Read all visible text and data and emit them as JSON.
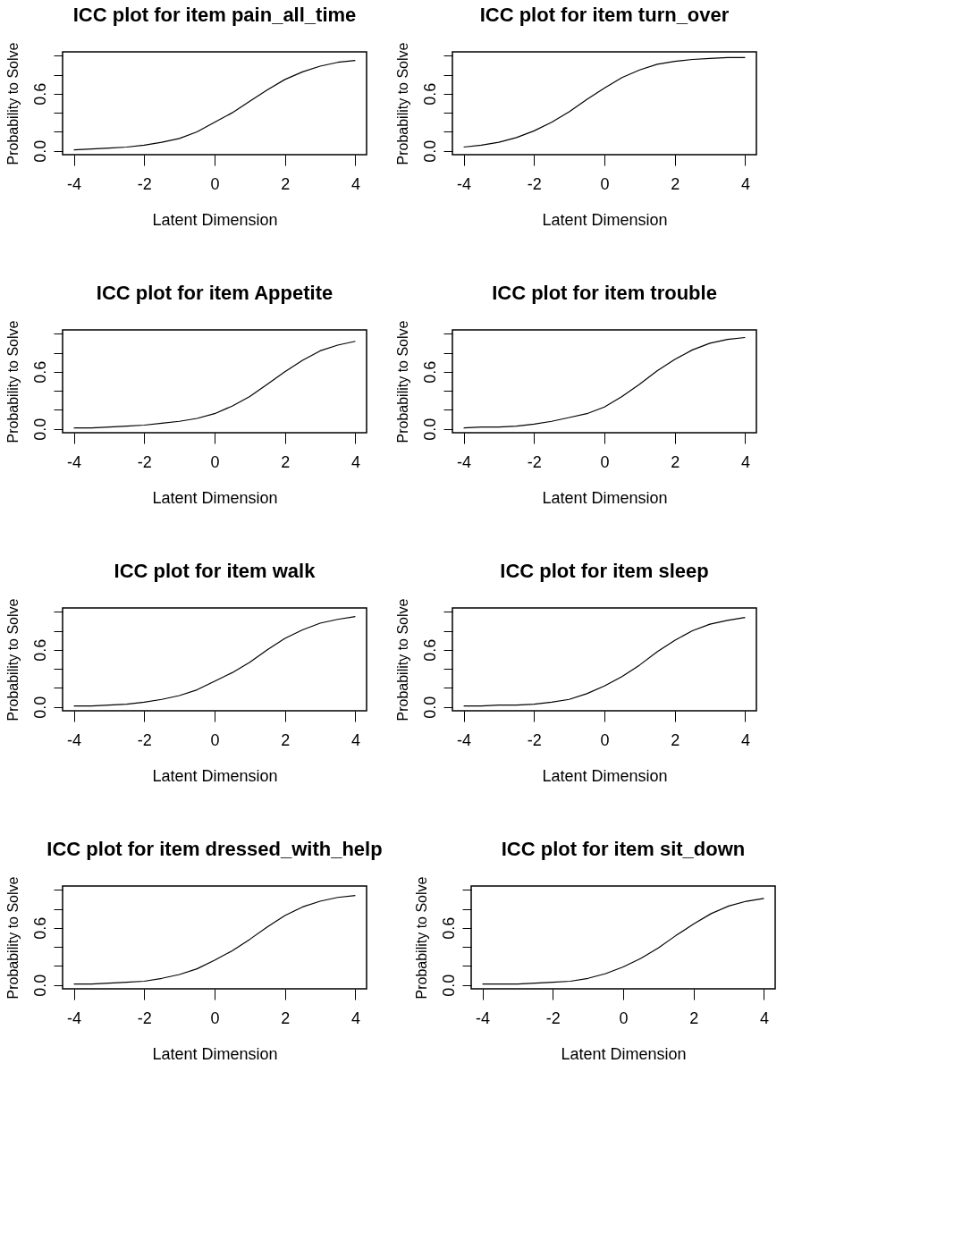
{
  "chart_data": [
    {
      "type": "line",
      "title": "ICC plot for item  pain_all_time",
      "xlabel": "Latent Dimension",
      "ylabel": "Probability to Solve",
      "x": [
        -4,
        -3.5,
        -3,
        -2.5,
        -2,
        -1.5,
        -1,
        -0.5,
        0,
        0.5,
        1,
        1.5,
        2,
        2.5,
        3,
        3.5,
        4
      ],
      "xlim": [
        -4.32,
        4.32
      ],
      "ylim": [
        -0.04,
        1.04
      ],
      "xticks": [
        -4,
        -2,
        0,
        2,
        4
      ],
      "yticks": [
        {
          "value": 0,
          "label": "0.0"
        },
        {
          "value": 0.2,
          "label": null
        },
        {
          "value": 0.4,
          "label": null
        },
        {
          "value": 0.6,
          "label": "0.6"
        },
        {
          "value": 0.8,
          "label": null
        },
        {
          "value": 1.0,
          "label": null
        }
      ],
      "grid": false,
      "legend": false,
      "series": [
        {
          "color": "#000000",
          "values": [
            0.01,
            0.02,
            0.03,
            0.04,
            0.06,
            0.09,
            0.13,
            0.2,
            0.3,
            0.4,
            0.52,
            0.64,
            0.75,
            0.83,
            0.89,
            0.93,
            0.95
          ]
        }
      ]
    },
    {
      "type": "line",
      "title": "ICC plot for item  turn_over",
      "xlabel": "Latent Dimension",
      "ylabel": "Probability to Solve",
      "x": [
        -4,
        -3.5,
        -3,
        -2.5,
        -2,
        -1.5,
        -1,
        -0.5,
        0,
        0.5,
        1,
        1.5,
        2,
        2.5,
        3,
        3.5,
        4
      ],
      "xlim": [
        -4.32,
        4.32
      ],
      "ylim": [
        -0.04,
        1.04
      ],
      "xticks": [
        -4,
        -2,
        0,
        2,
        4
      ],
      "yticks": [
        {
          "value": 0,
          "label": "0.0"
        },
        {
          "value": 0.2,
          "label": null
        },
        {
          "value": 0.4,
          "label": null
        },
        {
          "value": 0.6,
          "label": "0.6"
        },
        {
          "value": 0.8,
          "label": null
        },
        {
          "value": 1.0,
          "label": null
        }
      ],
      "grid": false,
      "legend": false,
      "series": [
        {
          "color": "#000000",
          "values": [
            0.04,
            0.06,
            0.09,
            0.14,
            0.21,
            0.3,
            0.41,
            0.54,
            0.66,
            0.77,
            0.85,
            0.91,
            0.94,
            0.96,
            0.97,
            0.98,
            0.98
          ]
        }
      ]
    },
    {
      "type": "line",
      "title": "ICC plot for item  Appetite",
      "xlabel": "Latent Dimension",
      "ylabel": "Probability to Solve",
      "x": [
        -4,
        -3.5,
        -3,
        -2.5,
        -2,
        -1.5,
        -1,
        -0.5,
        0,
        0.5,
        1,
        1.5,
        2,
        2.5,
        3,
        3.5,
        4
      ],
      "xlim": [
        -4.32,
        4.32
      ],
      "ylim": [
        -0.04,
        1.04
      ],
      "xticks": [
        -4,
        -2,
        0,
        2,
        4
      ],
      "yticks": [
        {
          "value": 0,
          "label": "0.0"
        },
        {
          "value": 0.2,
          "label": null
        },
        {
          "value": 0.4,
          "label": null
        },
        {
          "value": 0.6,
          "label": "0.6"
        },
        {
          "value": 0.8,
          "label": null
        },
        {
          "value": 1.0,
          "label": null
        }
      ],
      "grid": false,
      "legend": false,
      "series": [
        {
          "color": "#000000",
          "values": [
            0.01,
            0.01,
            0.02,
            0.03,
            0.04,
            0.06,
            0.08,
            0.11,
            0.16,
            0.24,
            0.34,
            0.47,
            0.6,
            0.72,
            0.82,
            0.88,
            0.92
          ]
        }
      ]
    },
    {
      "type": "line",
      "title": "ICC plot for item  trouble",
      "xlabel": "Latent Dimension",
      "ylabel": "Probability to Solve",
      "x": [
        -4,
        -3.5,
        -3,
        -2.5,
        -2,
        -1.5,
        -1,
        -0.5,
        0,
        0.5,
        1,
        1.5,
        2,
        2.5,
        3,
        3.5,
        4
      ],
      "xlim": [
        -4.32,
        4.32
      ],
      "ylim": [
        -0.04,
        1.04
      ],
      "xticks": [
        -4,
        -2,
        0,
        2,
        4
      ],
      "yticks": [
        {
          "value": 0,
          "label": "0.0"
        },
        {
          "value": 0.2,
          "label": null
        },
        {
          "value": 0.4,
          "label": null
        },
        {
          "value": 0.6,
          "label": "0.6"
        },
        {
          "value": 0.8,
          "label": null
        },
        {
          "value": 1.0,
          "label": null
        }
      ],
      "grid": false,
      "legend": false,
      "series": [
        {
          "color": "#000000",
          "values": [
            0.01,
            0.02,
            0.02,
            0.03,
            0.05,
            0.08,
            0.12,
            0.16,
            0.23,
            0.34,
            0.47,
            0.61,
            0.73,
            0.83,
            0.9,
            0.94,
            0.96
          ]
        }
      ]
    },
    {
      "type": "line",
      "title": "ICC plot for item  walk",
      "xlabel": "Latent Dimension",
      "ylabel": "Probability to Solve",
      "x": [
        -4,
        -3.5,
        -3,
        -2.5,
        -2,
        -1.5,
        -1,
        -0.5,
        0,
        0.5,
        1,
        1.5,
        2,
        2.5,
        3,
        3.5,
        4
      ],
      "xlim": [
        -4.32,
        4.32
      ],
      "ylim": [
        -0.04,
        1.04
      ],
      "xticks": [
        -4,
        -2,
        0,
        2,
        4
      ],
      "yticks": [
        {
          "value": 0,
          "label": "0.0"
        },
        {
          "value": 0.2,
          "label": null
        },
        {
          "value": 0.4,
          "label": null
        },
        {
          "value": 0.6,
          "label": "0.6"
        },
        {
          "value": 0.8,
          "label": null
        },
        {
          "value": 1.0,
          "label": null
        }
      ],
      "grid": false,
      "legend": false,
      "series": [
        {
          "color": "#000000",
          "values": [
            0.01,
            0.01,
            0.02,
            0.03,
            0.05,
            0.08,
            0.12,
            0.18,
            0.27,
            0.36,
            0.47,
            0.6,
            0.72,
            0.81,
            0.88,
            0.92,
            0.95
          ]
        }
      ]
    },
    {
      "type": "line",
      "title": "ICC plot for item  sleep",
      "xlabel": "Latent Dimension",
      "ylabel": "Probability to Solve",
      "x": [
        -4,
        -3.5,
        -3,
        -2.5,
        -2,
        -1.5,
        -1,
        -0.5,
        0,
        0.5,
        1,
        1.5,
        2,
        2.5,
        3,
        3.5,
        4
      ],
      "xlim": [
        -4.32,
        4.32
      ],
      "ylim": [
        -0.04,
        1.04
      ],
      "xticks": [
        -4,
        -2,
        0,
        2,
        4
      ],
      "yticks": [
        {
          "value": 0,
          "label": "0.0"
        },
        {
          "value": 0.2,
          "label": null
        },
        {
          "value": 0.4,
          "label": null
        },
        {
          "value": 0.6,
          "label": "0.6"
        },
        {
          "value": 0.8,
          "label": null
        },
        {
          "value": 1.0,
          "label": null
        }
      ],
      "grid": false,
      "legend": false,
      "series": [
        {
          "color": "#000000",
          "values": [
            0.01,
            0.01,
            0.02,
            0.02,
            0.03,
            0.05,
            0.08,
            0.14,
            0.22,
            0.32,
            0.44,
            0.58,
            0.7,
            0.8,
            0.87,
            0.91,
            0.94
          ]
        }
      ]
    },
    {
      "type": "line",
      "title": "ICC plot for item  dressed_with_help",
      "xlabel": "Latent Dimension",
      "ylabel": "Probability to Solve",
      "x": [
        -4,
        -3.5,
        -3,
        -2.5,
        -2,
        -1.5,
        -1,
        -0.5,
        0,
        0.5,
        1,
        1.5,
        2,
        2.5,
        3,
        3.5,
        4
      ],
      "xlim": [
        -4.32,
        4.32
      ],
      "ylim": [
        -0.04,
        1.04
      ],
      "xticks": [
        -4,
        -2,
        0,
        2,
        4
      ],
      "yticks": [
        {
          "value": 0,
          "label": "0.0"
        },
        {
          "value": 0.2,
          "label": null
        },
        {
          "value": 0.4,
          "label": null
        },
        {
          "value": 0.6,
          "label": "0.6"
        },
        {
          "value": 0.8,
          "label": null
        },
        {
          "value": 1.0,
          "label": null
        }
      ],
      "grid": false,
      "legend": false,
      "series": [
        {
          "color": "#000000",
          "values": [
            0.01,
            0.01,
            0.02,
            0.03,
            0.04,
            0.07,
            0.11,
            0.17,
            0.26,
            0.36,
            0.48,
            0.61,
            0.73,
            0.82,
            0.88,
            0.92,
            0.94
          ]
        }
      ]
    },
    {
      "type": "line",
      "title": "ICC plot for item  sit_down",
      "xlabel": "Latent Dimension",
      "ylabel": "Probability to Solve",
      "x": [
        -4,
        -3.5,
        -3,
        -2.5,
        -2,
        -1.5,
        -1,
        -0.5,
        0,
        0.5,
        1,
        1.5,
        2,
        2.5,
        3,
        3.5,
        4
      ],
      "xlim": [
        -4.32,
        4.32
      ],
      "ylim": [
        -0.04,
        1.04
      ],
      "xticks": [
        -4,
        -2,
        0,
        2,
        4
      ],
      "yticks": [
        {
          "value": 0,
          "label": "0.0"
        },
        {
          "value": 0.2,
          "label": null
        },
        {
          "value": 0.4,
          "label": null
        },
        {
          "value": 0.6,
          "label": "0.6"
        },
        {
          "value": 0.8,
          "label": null
        },
        {
          "value": 1.0,
          "label": null
        }
      ],
      "grid": false,
      "legend": false,
      "series": [
        {
          "color": "#000000",
          "values": [
            0.01,
            0.01,
            0.01,
            0.02,
            0.03,
            0.04,
            0.07,
            0.12,
            0.19,
            0.28,
            0.39,
            0.52,
            0.64,
            0.75,
            0.83,
            0.88,
            0.91
          ]
        }
      ]
    }
  ]
}
